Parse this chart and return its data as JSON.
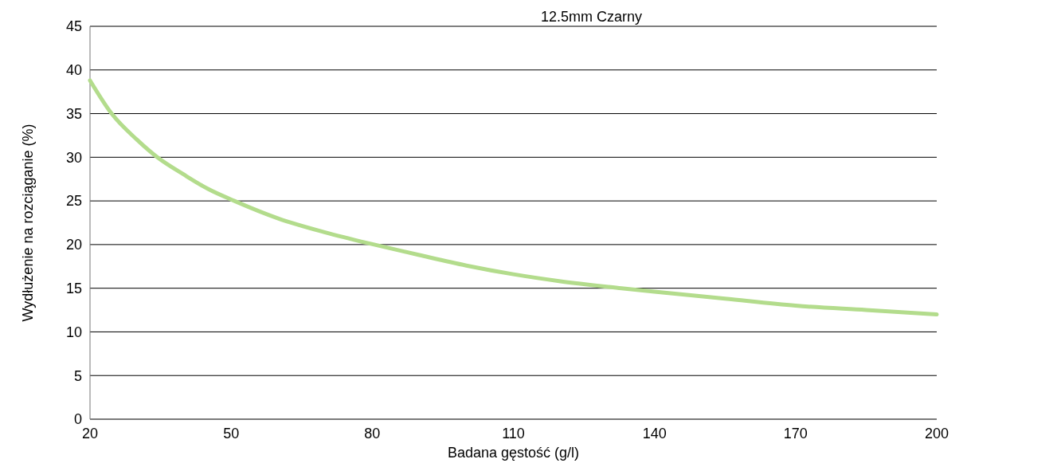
{
  "chart_data": {
    "type": "line",
    "title": "12.5mm Czarny",
    "xlabel": "Badana gęstość (g/l)",
    "ylabel": "Wydłużenie na rozciąganie (%)",
    "x": [
      20,
      24.6,
      30,
      34.3,
      40,
      45,
      50.7,
      60,
      70,
      80.4,
      90,
      100,
      110,
      120,
      133,
      140,
      155,
      170,
      185,
      200
    ],
    "series": [
      {
        "color": "#b3dc8c",
        "values": [
          38.8,
          35,
          32,
          30,
          28,
          26.4,
          25,
          23,
          21.4,
          20,
          18.8,
          17.6,
          16.6,
          15.8,
          15,
          14.6,
          13.8,
          13,
          12.5,
          12
        ]
      }
    ],
    "xlim": [
      20,
      200
    ],
    "xticks": [
      20,
      50,
      80,
      110,
      140,
      170,
      200
    ],
    "ylim": [
      0,
      45
    ],
    "yticks": [
      0,
      5,
      10,
      15,
      20,
      25,
      30,
      35,
      40,
      45
    ],
    "grid": "y",
    "marker": "none",
    "line_style": "solid"
  }
}
